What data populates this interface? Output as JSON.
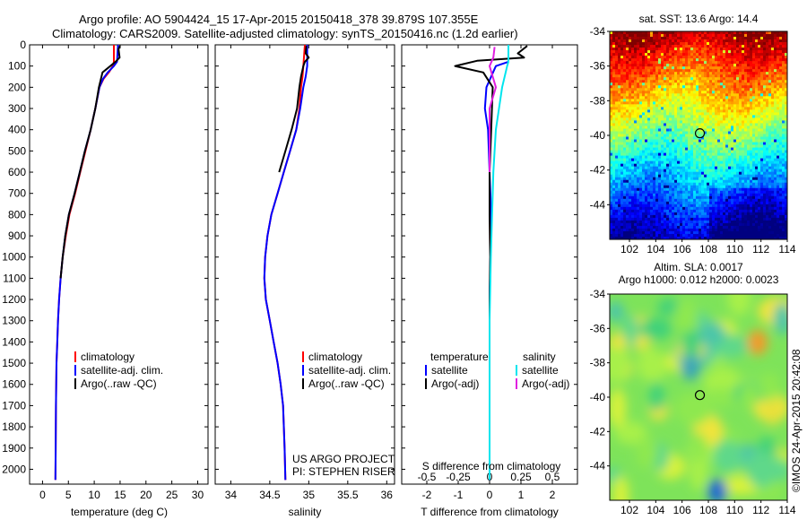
{
  "header": {
    "line1": "Argo profile: AO 5904424_15 17-Apr-2015 20150418_378 39.879S 107.355E",
    "line2": "Climatology: CARS2009. Satellite-adjusted climatology: synTS_20150416.nc (1.2d earlier)"
  },
  "credits": {
    "project": "US ARGO PROJECT",
    "pi": "PI: STEPHEN RISER",
    "imos": "©IMOS 24-Apr-2015 20:42:08"
  },
  "colors": {
    "climatology": "#ff0000",
    "satellite": "#0000ff",
    "argo": "#000000",
    "salinity_satellite": "#00e5ee",
    "salinity_argo": "#e020e0"
  },
  "chart_data": [
    {
      "type": "line",
      "name": "temperature-profile",
      "xlabel": "temperature (deg C)",
      "ylabel": "",
      "xlim": [
        -2.5,
        32
      ],
      "ylim": [
        2070,
        0
      ],
      "xticks": [
        "0",
        "5",
        "10",
        "15",
        "20",
        "25",
        "30"
      ],
      "xtick_values": [
        0,
        5,
        10,
        15,
        20,
        25,
        30
      ],
      "yticks": [
        "0",
        "100",
        "200",
        "300",
        "400",
        "500",
        "600",
        "700",
        "800",
        "900",
        "1000",
        "1100",
        "1200",
        "1300",
        "1400",
        "1500",
        "1600",
        "1700",
        "1800",
        "1900",
        "2000"
      ],
      "ytick_values": [
        0,
        100,
        200,
        300,
        400,
        500,
        600,
        700,
        800,
        900,
        1000,
        1100,
        1200,
        1300,
        1400,
        1500,
        1600,
        1700,
        1800,
        1900,
        2000
      ],
      "legend": [
        "climatology",
        "satellite-adj. clim.",
        "Argo(..raw -QC)"
      ],
      "legend_position": "bottom-right",
      "series": [
        {
          "name": "climatology",
          "x": [
            13.8,
            13.8,
            13.6,
            12.8,
            11.8,
            11.0,
            10.2,
            9.3,
            8.3,
            7.3,
            6.3,
            5.2,
            4.5,
            3.9,
            3.5,
            3.2,
            3.0,
            2.85,
            2.7,
            2.6,
            2.55,
            2.5
          ],
          "y": [
            0,
            80,
            100,
            130,
            160,
            200,
            300,
            400,
            500,
            600,
            700,
            800,
            900,
            1000,
            1100,
            1200,
            1300,
            1400,
            1500,
            1700,
            1900,
            2050
          ]
        },
        {
          "name": "satellite-adj. clim.",
          "x": [
            14.6,
            14.4,
            13.8,
            12.6,
            11.7,
            11.0,
            10.2,
            9.3,
            8.2,
            7.2,
            6.2,
            5.1,
            4.4,
            3.9,
            3.5,
            3.2,
            3.0,
            2.85,
            2.7,
            2.6,
            2.55,
            2.5
          ],
          "y": [
            0,
            80,
            100,
            130,
            160,
            200,
            300,
            400,
            500,
            600,
            700,
            800,
            900,
            1000,
            1100,
            1200,
            1300,
            1400,
            1500,
            1700,
            1900,
            2050
          ]
        },
        {
          "name": "Argo(..raw -QC)",
          "x": [
            15.0,
            14.7,
            14.9,
            14.1,
            13.1,
            11.6,
            10.9,
            10.2,
            9.3,
            8.2,
            7.2,
            6.2,
            5.1,
            4.4,
            3.9,
            3.5
          ],
          "y": [
            5,
            20,
            60,
            80,
            100,
            130,
            200,
            300,
            400,
            500,
            600,
            700,
            800,
            900,
            1000,
            1100
          ]
        }
      ]
    },
    {
      "type": "line",
      "name": "salinity-profile",
      "xlabel": "salinity",
      "xlim": [
        33.8,
        36.1
      ],
      "ylim": [
        2070,
        0
      ],
      "xticks": [
        "34",
        "34.5",
        "35",
        "35.5",
        "36"
      ],
      "xtick_values": [
        34,
        34.5,
        35,
        35.5,
        36
      ],
      "legend": [
        "climatology",
        "satellite-adj. clim.",
        "Argo(..raw -QC)"
      ],
      "legend_position": "bottom-right",
      "series": [
        {
          "name": "climatology",
          "x": [
            34.95,
            34.93,
            34.92,
            34.9,
            34.88,
            34.84,
            34.76,
            34.68,
            34.6,
            34.52,
            34.47,
            34.44,
            34.43,
            34.45,
            34.5,
            34.55,
            34.6,
            34.64,
            34.67,
            34.69,
            34.7
          ],
          "y": [
            0,
            100,
            150,
            200,
            300,
            400,
            500,
            600,
            700,
            800,
            900,
            1000,
            1100,
            1200,
            1300,
            1400,
            1500,
            1600,
            1700,
            1900,
            2050
          ]
        },
        {
          "name": "satellite-adj. clim.",
          "x": [
            34.98,
            34.98,
            34.96,
            34.93,
            34.89,
            34.84,
            34.76,
            34.68,
            34.6,
            34.52,
            34.47,
            34.44,
            34.43,
            34.45,
            34.5,
            34.55,
            34.6,
            34.64,
            34.67,
            34.69,
            34.7
          ],
          "y": [
            0,
            100,
            150,
            200,
            300,
            400,
            500,
            600,
            700,
            800,
            900,
            1000,
            1100,
            1200,
            1300,
            1400,
            1500,
            1600,
            1700,
            1900,
            2050
          ]
        },
        {
          "name": "Argo(..raw -QC)",
          "x": [
            34.97,
            34.96,
            35.0,
            34.95,
            34.93,
            34.9,
            34.88,
            34.85,
            34.78,
            34.7,
            34.62
          ],
          "y": [
            5,
            40,
            60,
            80,
            100,
            150,
            200,
            300,
            400,
            500,
            600
          ]
        }
      ]
    },
    {
      "type": "line",
      "name": "difference-profile",
      "xlabel": "T difference from climatology",
      "xlabel_top": "S difference from climatology",
      "xlim": [
        -2.8,
        2.8
      ],
      "ylim": [
        2070,
        0
      ],
      "xticks": [
        "-2",
        "-1",
        "0",
        "1",
        "2"
      ],
      "xtick_values": [
        -2,
        -1,
        0,
        1,
        2
      ],
      "xticks_top": [
        "-0.5",
        "-0.25",
        "0",
        "0.25",
        "0.5"
      ],
      "legend_groups": [
        {
          "title": "temperature",
          "items": [
            "satellite",
            "Argo(-adj)"
          ]
        },
        {
          "title": "salinity",
          "items": [
            "satellite",
            "Argo(-adj)"
          ]
        }
      ],
      "series": [
        {
          "name": "temperature satellite",
          "x": [
            0.6,
            0.6,
            0.2,
            -0.1,
            -0.15,
            -0.05,
            0.0,
            0.05,
            0.03,
            0.0,
            0.0,
            0.0,
            0.0
          ],
          "y": [
            0,
            80,
            100,
            200,
            300,
            400,
            600,
            800,
            1000,
            1200,
            1500,
            1800,
            2050
          ]
        },
        {
          "name": "temperature Argo(-adj)",
          "x": [
            1.2,
            0.9,
            1.1,
            -0.4,
            -1.1,
            -0.2,
            0.1,
            0.05,
            0.0,
            0.0,
            0.02,
            0.0,
            0.0,
            0.0
          ],
          "y": [
            5,
            40,
            60,
            75,
            100,
            130,
            200,
            400,
            600,
            800,
            1000,
            1200,
            1300,
            1400
          ]
        },
        {
          "name": "salinity satellite",
          "x": [
            0.15,
            0.15,
            0.14,
            0.1,
            0.05,
            0.03,
            0.02,
            0.01,
            0.0,
            0.0,
            0.0
          ],
          "y": [
            0,
            80,
            100,
            200,
            400,
            600,
            800,
            1000,
            1300,
            1600,
            2050
          ]
        },
        {
          "name": "salinity Argo(-adj)",
          "x": [
            0.04,
            0.03,
            0.0,
            0.05,
            0.0,
            0.0,
            0.0,
            0.0
          ],
          "y": [
            10,
            60,
            100,
            200,
            300,
            400,
            500,
            600
          ]
        }
      ]
    },
    {
      "type": "heatmap",
      "name": "sst-map",
      "title": "sat. SST: 13.6 Argo: 14.4",
      "xlim": [
        100.5,
        114
      ],
      "ylim": [
        -46,
        -34
      ],
      "xticks": [
        "102",
        "104",
        "106",
        "108",
        "110",
        "112",
        "114"
      ],
      "xtick_values": [
        102,
        104,
        106,
        108,
        110,
        112,
        114
      ],
      "yticks": [
        "-34",
        "-36",
        "-38",
        "-40",
        "-42",
        "-44"
      ],
      "ytick_values": [
        -34,
        -36,
        -38,
        -40,
        -42,
        -44
      ],
      "marker": {
        "lon": 107.355,
        "lat": -39.879
      }
    },
    {
      "type": "heatmap",
      "name": "sla-map",
      "title": "Altim. SLA: 0.0017",
      "subtitle": "Argo h1000: 0.012 h2000: 0.0023",
      "xlim": [
        100.5,
        114
      ],
      "ylim": [
        -46,
        -34
      ],
      "xticks": [
        "102",
        "104",
        "106",
        "108",
        "110",
        "112",
        "114"
      ],
      "xtick_values": [
        102,
        104,
        106,
        108,
        110,
        112,
        114
      ],
      "yticks": [
        "-34",
        "-36",
        "-38",
        "-40",
        "-42",
        "-44"
      ],
      "ytick_values": [
        -34,
        -36,
        -38,
        -40,
        -42,
        -44
      ],
      "marker": {
        "lon": 107.355,
        "lat": -39.879
      }
    }
  ]
}
